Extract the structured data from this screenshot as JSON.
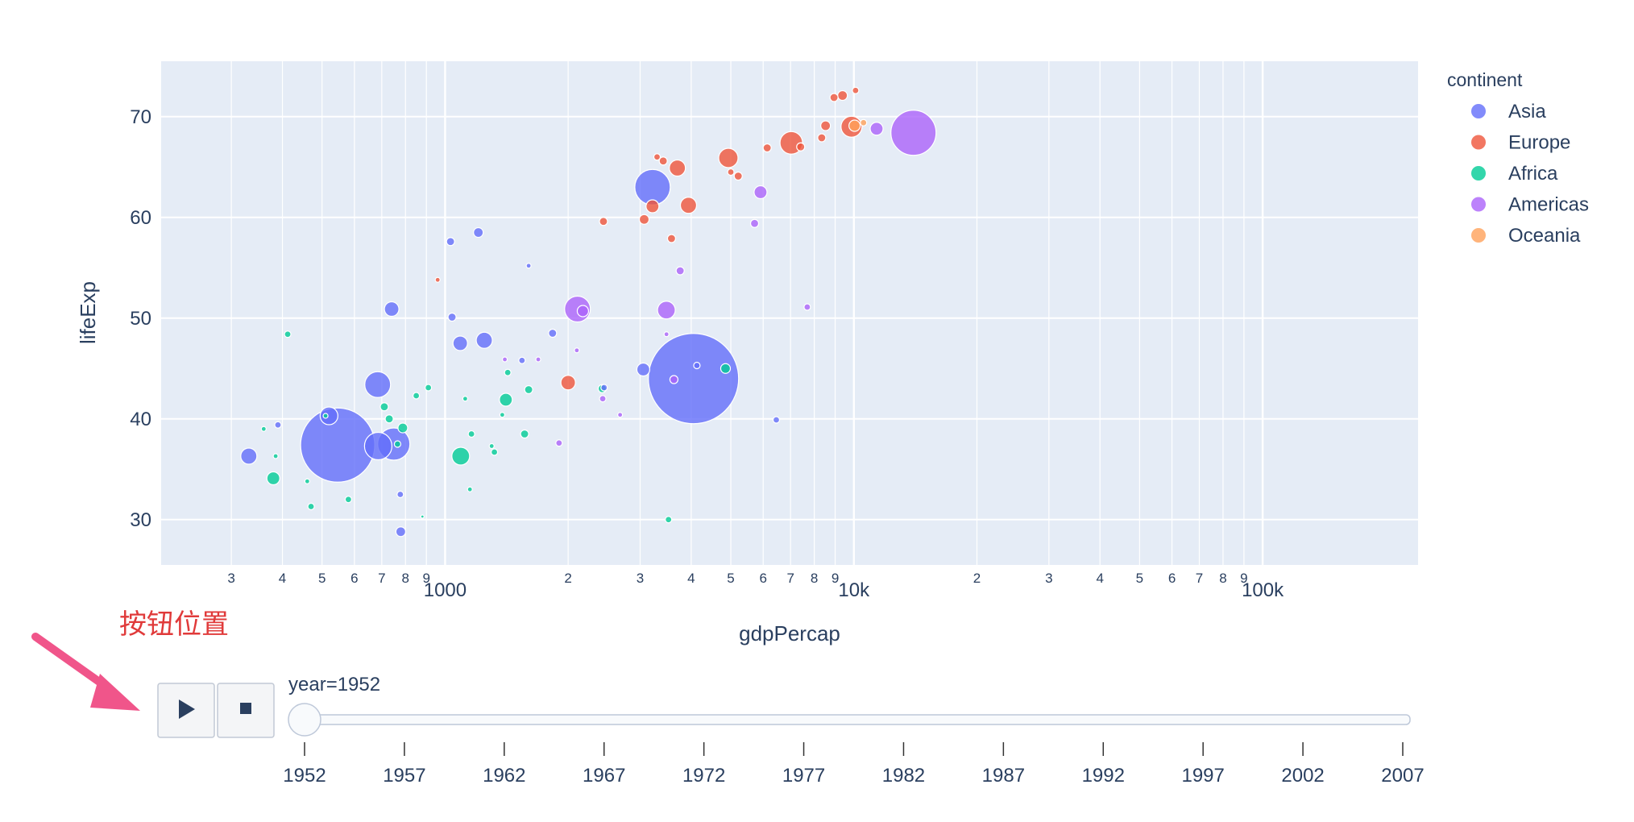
{
  "annotation": {
    "text": "按钮位置",
    "color": "#e03a3a",
    "arrow_color": "#f0558a"
  },
  "chart_data": {
    "type": "scatter",
    "subtype": "bubble",
    "x_scale": "log",
    "xlabel": "gdpPercap",
    "ylabel": "lifeExp",
    "xlim": [
      202,
      240000
    ],
    "ylim": [
      25.5,
      75.5
    ],
    "x_major_ticks": [
      {
        "value": 1000,
        "label": "1000"
      },
      {
        "value": 10000,
        "label": "10k"
      },
      {
        "value": 100000,
        "label": "100k"
      }
    ],
    "x_minor_ticks": [
      {
        "value": 300,
        "label": "3"
      },
      {
        "value": 400,
        "label": "4"
      },
      {
        "value": 500,
        "label": "5"
      },
      {
        "value": 600,
        "label": "6"
      },
      {
        "value": 700,
        "label": "7"
      },
      {
        "value": 800,
        "label": "8"
      },
      {
        "value": 900,
        "label": "9"
      },
      {
        "value": 2000,
        "label": "2"
      },
      {
        "value": 3000,
        "label": "3"
      },
      {
        "value": 4000,
        "label": "4"
      },
      {
        "value": 5000,
        "label": "5"
      },
      {
        "value": 6000,
        "label": "6"
      },
      {
        "value": 7000,
        "label": "7"
      },
      {
        "value": 8000,
        "label": "8"
      },
      {
        "value": 9000,
        "label": "9"
      },
      {
        "value": 20000,
        "label": "2"
      },
      {
        "value": 30000,
        "label": "3"
      },
      {
        "value": 40000,
        "label": "4"
      },
      {
        "value": 50000,
        "label": "5"
      },
      {
        "value": 60000,
        "label": "6"
      },
      {
        "value": 70000,
        "label": "7"
      },
      {
        "value": 80000,
        "label": "8"
      },
      {
        "value": 90000,
        "label": "9"
      }
    ],
    "y_ticks": [
      {
        "value": 30,
        "label": "30"
      },
      {
        "value": 40,
        "label": "40"
      },
      {
        "value": 50,
        "label": "50"
      },
      {
        "value": 60,
        "label": "60"
      },
      {
        "value": 70,
        "label": "70"
      }
    ],
    "legend_title": "continent",
    "legend_position": "right",
    "series": [
      {
        "name": "Asia",
        "color": "#636efa",
        "points": [
          {
            "x": 779,
            "y": 28.8,
            "r": 6
          },
          {
            "x": 1601,
            "y": 55.2,
            "r": 3
          },
          {
            "x": 2449,
            "y": 43.1,
            "r": 4
          },
          {
            "x": 4052,
            "y": 44.0,
            "r": 56
          },
          {
            "x": 546,
            "y": 37.4,
            "r": 46
          },
          {
            "x": 749,
            "y": 37.5,
            "r": 20
          },
          {
            "x": 686,
            "y": 37.3,
            "r": 17
          },
          {
            "x": 684,
            "y": 43.4,
            "r": 16
          },
          {
            "x": 331,
            "y": 36.3,
            "r": 10
          },
          {
            "x": 520,
            "y": 40.3,
            "r": 11
          },
          {
            "x": 3217,
            "y": 63.0,
            "r": 22
          },
          {
            "x": 3054,
            "y": 44.9,
            "r": 8
          },
          {
            "x": 1089,
            "y": 47.5,
            "r": 9
          },
          {
            "x": 1247,
            "y": 47.8,
            "r": 10
          },
          {
            "x": 740,
            "y": 50.9,
            "r": 9
          },
          {
            "x": 1206,
            "y": 58.5,
            "r": 6
          },
          {
            "x": 1031,
            "y": 57.6,
            "r": 5
          },
          {
            "x": 1832,
            "y": 48.5,
            "r": 5
          },
          {
            "x": 1542,
            "y": 45.8,
            "r": 4
          },
          {
            "x": 4130,
            "y": 45.3,
            "r": 4
          },
          {
            "x": 6460,
            "y": 39.9,
            "r": 4
          },
          {
            "x": 1040,
            "y": 50.1,
            "r": 5
          },
          {
            "x": 777,
            "y": 32.5,
            "r": 4
          },
          {
            "x": 390,
            "y": 39.4,
            "r": 4
          }
        ]
      },
      {
        "name": "Europe",
        "color": "#ef553b",
        "points": [
          {
            "x": 7029,
            "y": 67.4,
            "r": 14
          },
          {
            "x": 4931,
            "y": 65.9,
            "r": 12
          },
          {
            "x": 8527,
            "y": 69.1,
            "r": 6
          },
          {
            "x": 9867,
            "y": 69.0,
            "r": 13
          },
          {
            "x": 3939,
            "y": 61.2,
            "r": 10
          },
          {
            "x": 3700,
            "y": 64.9,
            "r": 10
          },
          {
            "x": 3216,
            "y": 61.1,
            "r": 8
          },
          {
            "x": 3069,
            "y": 59.8,
            "r": 6
          },
          {
            "x": 2440,
            "y": 59.6,
            "r": 5
          },
          {
            "x": 5000,
            "y": 64.5,
            "r": 4
          },
          {
            "x": 5213,
            "y": 64.1,
            "r": 5
          },
          {
            "x": 6137,
            "y": 66.9,
            "r": 5
          },
          {
            "x": 7411,
            "y": 67.0,
            "r": 5
          },
          {
            "x": 8343,
            "y": 67.9,
            "r": 5
          },
          {
            "x": 8942,
            "y": 71.9,
            "r": 5
          },
          {
            "x": 9381,
            "y": 72.1,
            "r": 6
          },
          {
            "x": 10096,
            "y": 72.6,
            "r": 4
          },
          {
            "x": 3417,
            "y": 65.6,
            "r": 5
          },
          {
            "x": 3580,
            "y": 57.9,
            "r": 5
          },
          {
            "x": 2000,
            "y": 43.6,
            "r": 9
          },
          {
            "x": 3300,
            "y": 66.0,
            "r": 4
          },
          {
            "x": 959,
            "y": 53.8,
            "r": 3
          }
        ]
      },
      {
        "name": "Africa",
        "color": "#00cc96",
        "points": [
          {
            "x": 1092,
            "y": 36.3,
            "r": 11
          },
          {
            "x": 1408,
            "y": 41.9,
            "r": 8
          },
          {
            "x": 4853,
            "y": 45.0,
            "r": 6
          },
          {
            "x": 380,
            "y": 34.1,
            "r": 8
          },
          {
            "x": 788,
            "y": 39.1,
            "r": 6
          },
          {
            "x": 1423,
            "y": 44.6,
            "r": 4
          },
          {
            "x": 1601,
            "y": 42.9,
            "r": 5
          },
          {
            "x": 2423,
            "y": 43.0,
            "r": 5
          },
          {
            "x": 1565,
            "y": 38.5,
            "r": 5
          },
          {
            "x": 3520,
            "y": 30.0,
            "r": 4
          },
          {
            "x": 470,
            "y": 31.3,
            "r": 4
          },
          {
            "x": 580,
            "y": 32.0,
            "r": 4
          },
          {
            "x": 710,
            "y": 41.2,
            "r": 5
          },
          {
            "x": 730,
            "y": 40.0,
            "r": 5
          },
          {
            "x": 850,
            "y": 42.3,
            "r": 4
          },
          {
            "x": 910,
            "y": 43.1,
            "r": 4
          },
          {
            "x": 1160,
            "y": 38.5,
            "r": 4
          },
          {
            "x": 1300,
            "y": 37.3,
            "r": 3
          },
          {
            "x": 1320,
            "y": 36.7,
            "r": 4
          },
          {
            "x": 412,
            "y": 48.4,
            "r": 4
          },
          {
            "x": 1150,
            "y": 33.0,
            "r": 3
          },
          {
            "x": 510,
            "y": 40.3,
            "r": 3
          },
          {
            "x": 360,
            "y": 39.0,
            "r": 3
          },
          {
            "x": 385,
            "y": 36.3,
            "r": 3
          },
          {
            "x": 460,
            "y": 33.8,
            "r": 3
          },
          {
            "x": 765,
            "y": 37.5,
            "r": 4
          },
          {
            "x": 1380,
            "y": 40.4,
            "r": 3
          },
          {
            "x": 1120,
            "y": 42.0,
            "r": 3
          },
          {
            "x": 880,
            "y": 30.3,
            "r": 2
          }
        ]
      },
      {
        "name": "Americas",
        "color": "#ab63fa",
        "points": [
          {
            "x": 13990,
            "y": 68.4,
            "r": 28
          },
          {
            "x": 2108,
            "y": 50.9,
            "r": 16
          },
          {
            "x": 3478,
            "y": 50.8,
            "r": 11
          },
          {
            "x": 11367,
            "y": 68.8,
            "r": 8
          },
          {
            "x": 5911,
            "y": 62.5,
            "r": 8
          },
          {
            "x": 2173,
            "y": 50.7,
            "r": 7
          },
          {
            "x": 3759,
            "y": 54.7,
            "r": 5
          },
          {
            "x": 5716,
            "y": 59.4,
            "r": 5
          },
          {
            "x": 7690,
            "y": 51.1,
            "r": 4
          },
          {
            "x": 3629,
            "y": 43.9,
            "r": 5
          },
          {
            "x": 1900,
            "y": 37.6,
            "r": 4
          },
          {
            "x": 2430,
            "y": 42.0,
            "r": 4
          },
          {
            "x": 3480,
            "y": 48.4,
            "r": 3
          },
          {
            "x": 2680,
            "y": 40.4,
            "r": 3
          },
          {
            "x": 1690,
            "y": 45.9,
            "r": 3
          },
          {
            "x": 1400,
            "y": 45.9,
            "r": 3
          },
          {
            "x": 2100,
            "y": 46.8,
            "r": 3
          }
        ]
      },
      {
        "name": "Oceania",
        "color": "#ffa15a",
        "points": [
          {
            "x": 10040,
            "y": 69.1,
            "r": 7
          },
          {
            "x": 10557,
            "y": 69.4,
            "r": 4
          }
        ]
      }
    ]
  },
  "slider": {
    "current_label": "year=1952",
    "active_index": 0,
    "steps": [
      "1952",
      "1957",
      "1962",
      "1967",
      "1972",
      "1977",
      "1982",
      "1987",
      "1992",
      "1997",
      "2002",
      "2007"
    ]
  },
  "colors": {
    "plot_bg": "#e5ecf6",
    "grid": "#ffffff",
    "text": "#2a3f5f",
    "slider_rail": "#f8fafc",
    "slider_border": "#bec8d9"
  }
}
